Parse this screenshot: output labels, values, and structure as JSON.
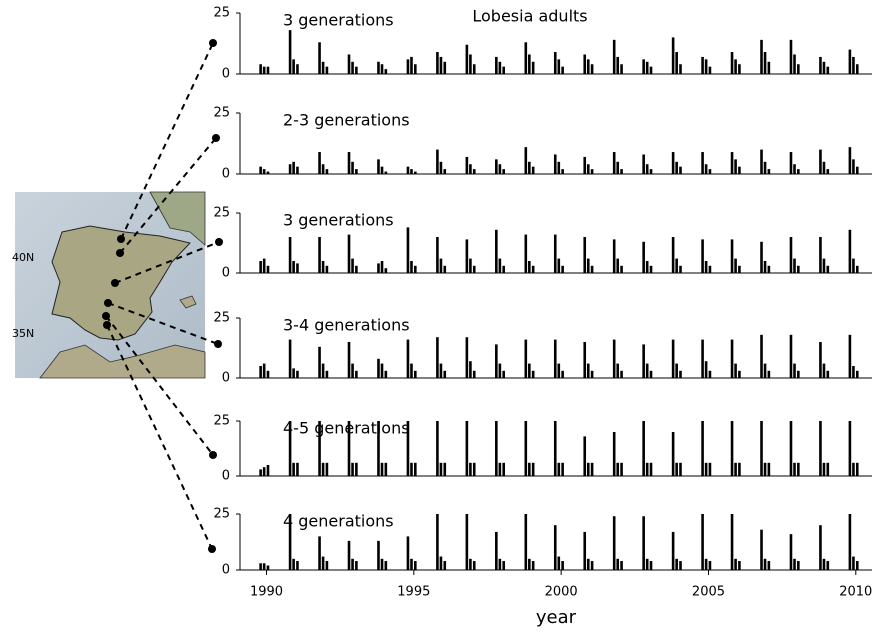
{
  "chart_data": {
    "type": "bar",
    "title": "Lobesia adults",
    "xlabel": "year",
    "small_multiples": true,
    "x": [
      1989.8,
      1989.92,
      1990.05,
      1990.8,
      1990.92,
      1991.05,
      1991.8,
      1991.92,
      1992.05,
      1992.8,
      1992.92,
      1993.05,
      1993.8,
      1993.92,
      1994.05,
      1994.8,
      1994.92,
      1995.05,
      1995.8,
      1995.92,
      1996.05,
      1996.8,
      1996.92,
      1997.05,
      1997.8,
      1997.92,
      1998.05,
      1998.8,
      1998.92,
      1999.05,
      1999.8,
      1999.92,
      2000.05,
      2000.8,
      2000.92,
      2001.05,
      2001.8,
      2001.92,
      2002.05,
      2002.8,
      2002.92,
      2003.05,
      2003.8,
      2003.92,
      2004.05,
      2004.8,
      2004.92,
      2005.05,
      2005.8,
      2005.92,
      2006.05,
      2006.8,
      2006.92,
      2007.05,
      2007.8,
      2007.92,
      2008.05,
      2008.8,
      2008.92,
      2009.05,
      2009.8,
      2009.92,
      2010.05
    ],
    "xlim": [
      1989.1,
      2010.55
    ],
    "xticks": [
      1990,
      1995,
      2000,
      2005,
      2010
    ],
    "ylim": [
      0,
      25
    ],
    "yticks": [
      0,
      25
    ],
    "series": [
      {
        "name": "3 generations",
        "color": "#000000",
        "values": [
          4,
          3,
          3,
          18,
          6,
          4,
          13,
          5,
          3,
          8,
          5,
          3,
          5,
          4,
          2,
          6,
          7,
          4,
          9,
          7,
          5,
          12,
          8,
          4,
          7,
          5,
          3,
          13,
          8,
          5,
          9,
          6,
          3,
          8,
          6,
          4,
          14,
          7,
          4,
          6,
          5,
          3,
          15,
          9,
          4,
          7,
          6,
          3,
          9,
          6,
          4,
          14,
          9,
          5,
          14,
          8,
          4,
          7,
          5,
          3,
          10,
          7,
          4
        ]
      },
      {
        "name": "2-3 generations",
        "color": "#000000",
        "values": [
          3,
          2,
          1,
          4,
          5,
          3,
          9,
          4,
          2,
          9,
          5,
          2,
          6,
          3,
          1,
          3,
          2,
          1,
          10,
          5,
          2,
          7,
          4,
          2,
          6,
          4,
          2,
          11,
          5,
          3,
          8,
          5,
          2,
          7,
          4,
          2,
          9,
          5,
          2,
          8,
          4,
          2,
          9,
          5,
          3,
          9,
          4,
          2,
          9,
          6,
          3,
          10,
          5,
          2,
          9,
          4,
          2,
          10,
          5,
          2,
          11,
          6,
          3
        ]
      },
      {
        "name": "3 generations",
        "color": "#000000",
        "values": [
          5,
          6,
          3,
          15,
          5,
          4,
          15,
          5,
          3,
          16,
          6,
          3,
          4,
          5,
          2,
          19,
          5,
          3,
          15,
          6,
          3,
          14,
          6,
          3,
          18,
          6,
          3,
          16,
          5,
          3,
          16,
          6,
          3,
          15,
          6,
          3,
          14,
          6,
          3,
          13,
          5,
          3,
          15,
          6,
          3,
          14,
          5,
          3,
          14,
          6,
          3,
          13,
          5,
          3,
          15,
          6,
          3,
          15,
          6,
          3,
          18,
          6,
          3
        ]
      },
      {
        "name": "3-4 generations",
        "color": "#000000",
        "values": [
          5,
          6,
          3,
          16,
          4,
          3,
          13,
          6,
          3,
          15,
          6,
          3,
          8,
          6,
          3,
          16,
          6,
          3,
          17,
          6,
          3,
          17,
          7,
          3,
          14,
          6,
          3,
          16,
          6,
          3,
          16,
          6,
          3,
          15,
          6,
          3,
          16,
          6,
          3,
          14,
          6,
          3,
          16,
          6,
          3,
          16,
          7,
          3,
          16,
          6,
          3,
          18,
          6,
          3,
          18,
          6,
          3,
          15,
          6,
          3,
          18,
          5,
          3
        ]
      },
      {
        "name": "4-5 generations",
        "color": "#000000",
        "values": [
          3,
          4,
          5,
          25,
          6,
          6,
          25,
          6,
          6,
          25,
          6,
          6,
          25,
          6,
          6,
          25,
          6,
          6,
          25,
          6,
          6,
          25,
          6,
          6,
          25,
          6,
          6,
          25,
          6,
          6,
          25,
          6,
          6,
          18,
          6,
          6,
          20,
          6,
          6,
          25,
          6,
          6,
          20,
          6,
          6,
          25,
          6,
          6,
          25,
          6,
          6,
          25,
          6,
          6,
          25,
          6,
          6,
          25,
          6,
          6,
          25,
          6,
          6
        ]
      },
      {
        "name": "4 generations",
        "color": "#000000",
        "values": [
          3,
          3,
          2,
          25,
          5,
          4,
          15,
          6,
          4,
          13,
          5,
          4,
          13,
          5,
          4,
          15,
          5,
          4,
          25,
          6,
          4,
          25,
          5,
          4,
          17,
          5,
          4,
          25,
          5,
          4,
          20,
          6,
          4,
          17,
          5,
          4,
          24,
          5,
          4,
          24,
          5,
          4,
          17,
          5,
          4,
          25,
          5,
          4,
          25,
          5,
          4,
          18,
          5,
          4,
          16,
          5,
          4,
          20,
          5,
          4,
          25,
          6,
          4
        ]
      }
    ]
  },
  "map": {
    "labels": [
      "40N",
      "35N"
    ]
  }
}
